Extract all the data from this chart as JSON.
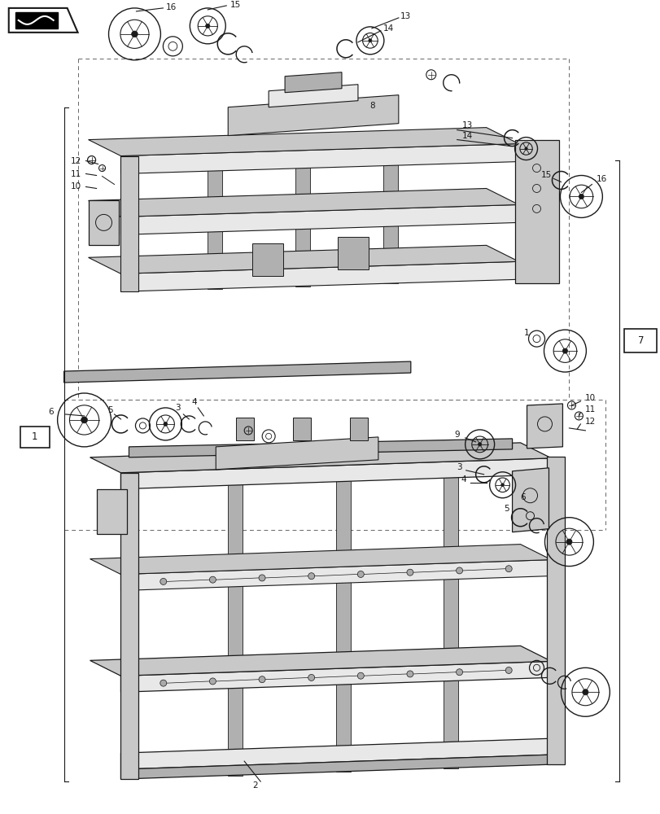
{
  "bg_color": "#ffffff",
  "line_color": "#1a1a1a",
  "dashed_color": "#666666",
  "fig_width": 8.12,
  "fig_height": 10.0,
  "dpi": 100,
  "face_color": "#e8e8e8",
  "dark_face": "#c8c8c8",
  "shadow_face": "#b0b0b0"
}
